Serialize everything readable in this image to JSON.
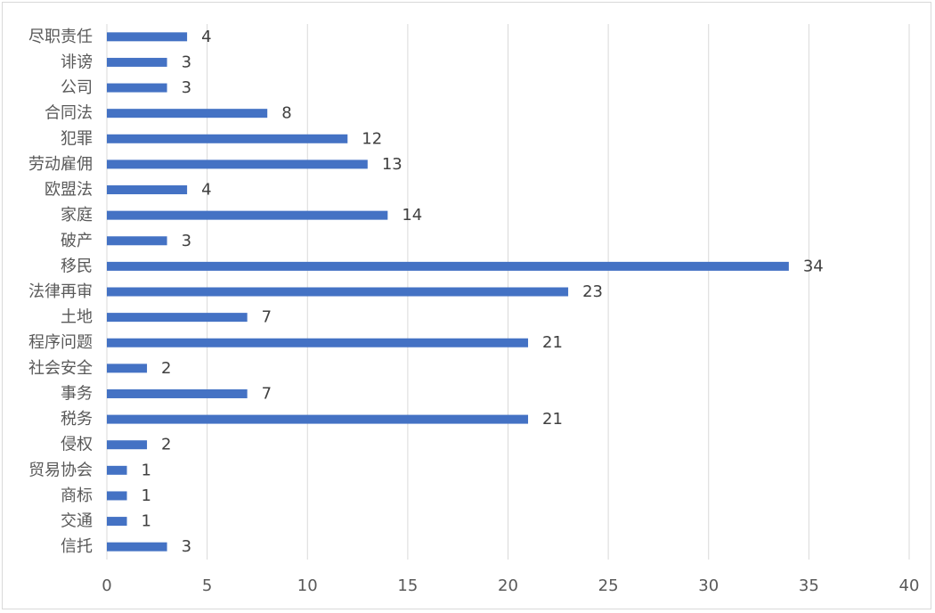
{
  "chart_data": {
    "type": "bar",
    "orientation": "horizontal",
    "title": "",
    "xlabel": "",
    "ylabel": "",
    "categories": [
      "尽职责任",
      "诽谤",
      "公司",
      "合同法",
      "犯罪",
      "劳动雇佣",
      "欧盟法",
      "家庭",
      "破产",
      "移民",
      "法律再审",
      "土地",
      "程序问题",
      "社会安全",
      "事务",
      "税务",
      "侵权",
      "贸易协会",
      "商标",
      "交通",
      "信托"
    ],
    "values": [
      4,
      3,
      3,
      8,
      12,
      13,
      4,
      14,
      3,
      34,
      23,
      7,
      21,
      2,
      7,
      21,
      2,
      1,
      1,
      1,
      3
    ],
    "xlim": [
      0,
      40
    ],
    "xticks": [
      0,
      5,
      10,
      15,
      20,
      25,
      30,
      35,
      40
    ],
    "grid": "vertical",
    "legend": "none",
    "data_labels": true,
    "bar_color": "#4472c4",
    "grid_color": "#d9d9d9"
  }
}
